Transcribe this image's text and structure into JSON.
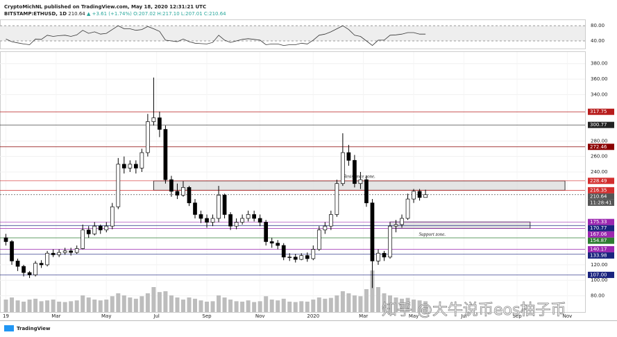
{
  "header": {
    "line1": "CryptoMichNL published on TradingView.com, May 18, 2020 12:31:21 UTC",
    "symbol": "BITSTAMP:ETHUSD, 1D",
    "price": "210.64",
    "change": "▲ +3.61 (+1.74%)",
    "ohlc": "O:207.02 H:217.10 L:207.01 C:210.64"
  },
  "footer": {
    "brand": "TradingView"
  },
  "watermark": "知乎 @大牛说币eos柚子币",
  "chart_data": {
    "type": "candlestick",
    "xlim": [
      -1,
      98
    ],
    "xticks": [
      {
        "value": 0,
        "label": "19"
      },
      {
        "value": 8.5,
        "label": "Mar"
      },
      {
        "value": 17,
        "label": "May"
      },
      {
        "value": 25.5,
        "label": "Jul"
      },
      {
        "value": 34,
        "label": "Sep"
      },
      {
        "value": 43,
        "label": "Nov"
      },
      {
        "value": 52,
        "label": "2020"
      },
      {
        "value": 60.5,
        "label": "Mar"
      },
      {
        "value": 69,
        "label": "May"
      },
      {
        "value": 77.5,
        "label": "Jul"
      },
      {
        "value": 86.5,
        "label": "Sep"
      },
      {
        "value": 95,
        "label": "Nov"
      }
    ],
    "ylim": [
      59,
      395
    ],
    "yticks": [
      {
        "value": 380,
        "label": "380.00"
      },
      {
        "value": 360,
        "label": "360.00"
      },
      {
        "value": 340,
        "label": "340.00"
      },
      {
        "value": 280,
        "label": "280.00"
      },
      {
        "value": 260,
        "label": "260.00"
      },
      {
        "value": 240,
        "label": "240.00"
      },
      {
        "value": 120,
        "label": "120.00"
      },
      {
        "value": 100,
        "label": "100.00"
      },
      {
        "value": 80,
        "label": "80.00"
      }
    ],
    "open": [
      155,
      150,
      125,
      118,
      110,
      107,
      122,
      120,
      135,
      133,
      136,
      138,
      136,
      141,
      165,
      160,
      170,
      165,
      170,
      195,
      250,
      245,
      250,
      245,
      265,
      305,
      310,
      295,
      230,
      215,
      210,
      220,
      200,
      185,
      180,
      175,
      180,
      210,
      185,
      170,
      175,
      180,
      185,
      180,
      175,
      150,
      148,
      145,
      130,
      130,
      127,
      132,
      128,
      140,
      165,
      170,
      185,
      225,
      265,
      255,
      225,
      230,
      200,
      125,
      135,
      130,
      170,
      172,
      180,
      205,
      215,
      207.02
    ],
    "high": [
      160,
      152,
      128,
      120,
      112,
      125,
      126,
      138,
      140,
      140,
      142,
      142,
      145,
      172,
      170,
      175,
      172,
      175,
      200,
      258,
      260,
      255,
      255,
      270,
      315,
      362,
      318,
      300,
      235,
      225,
      228,
      222,
      205,
      190,
      185,
      185,
      222,
      212,
      188,
      180,
      185,
      190,
      190,
      185,
      178,
      155,
      152,
      148,
      135,
      134,
      135,
      136,
      145,
      170,
      175,
      190,
      230,
      290,
      275,
      262,
      240,
      235,
      205,
      140,
      138,
      175,
      178,
      185,
      212,
      218,
      218,
      217.1
    ],
    "low": [
      145,
      120,
      112,
      105,
      103,
      105,
      116,
      118,
      130,
      130,
      133,
      132,
      134,
      140,
      155,
      158,
      160,
      162,
      166,
      192,
      238,
      240,
      238,
      240,
      260,
      300,
      285,
      225,
      208,
      205,
      208,
      196,
      180,
      174,
      168,
      170,
      175,
      180,
      165,
      166,
      172,
      176,
      176,
      170,
      145,
      142,
      140,
      126,
      125,
      123,
      126,
      124,
      126,
      138,
      160,
      165,
      182,
      222,
      248,
      220,
      218,
      195,
      90,
      120,
      125,
      128,
      162,
      168,
      178,
      200,
      203,
      207.01
    ],
    "close": [
      150,
      125,
      118,
      110,
      107,
      122,
      120,
      135,
      133,
      136,
      138,
      136,
      141,
      165,
      160,
      170,
      165,
      170,
      195,
      250,
      245,
      250,
      245,
      265,
      305,
      310,
      295,
      230,
      215,
      210,
      220,
      200,
      185,
      180,
      175,
      180,
      210,
      185,
      170,
      175,
      180,
      185,
      180,
      175,
      150,
      148,
      145,
      130,
      130,
      127,
      132,
      128,
      140,
      165,
      170,
      185,
      225,
      265,
      255,
      225,
      230,
      200,
      125,
      135,
      130,
      170,
      172,
      180,
      205,
      215,
      207,
      210.64
    ],
    "volume": {
      "ylim": [
        0,
        100
      ],
      "values": [
        30,
        35,
        28,
        25,
        30,
        32,
        26,
        28,
        30,
        25,
        24,
        26,
        28,
        40,
        35,
        30,
        28,
        30,
        38,
        45,
        40,
        35,
        32,
        38,
        45,
        60,
        48,
        50,
        40,
        35,
        30,
        35,
        32,
        28,
        25,
        26,
        40,
        35,
        30,
        26,
        25,
        28,
        24,
        26,
        38,
        30,
        28,
        32,
        25,
        24,
        26,
        25,
        30,
        35,
        32,
        34,
        40,
        50,
        45,
        40,
        38,
        55,
        100,
        60,
        45,
        40,
        35,
        32,
        34,
        30,
        28,
        26
      ]
    },
    "rsi": {
      "ylim": [
        20,
        93
      ],
      "yticks": [
        {
          "value": 80,
          "label": "80.00"
        },
        {
          "value": 40,
          "label": "40.00"
        }
      ],
      "values": [
        45,
        38,
        35,
        32,
        30,
        45,
        44,
        55,
        52,
        54,
        55,
        52,
        56,
        68,
        60,
        64,
        58,
        60,
        70,
        80,
        72,
        72,
        68,
        70,
        78,
        72,
        65,
        42,
        40,
        38,
        45,
        38,
        34,
        33,
        32,
        36,
        55,
        42,
        36,
        40,
        44,
        46,
        44,
        42,
        30,
        32,
        32,
        28,
        30,
        30,
        34,
        32,
        42,
        55,
        58,
        64,
        72,
        80,
        70,
        55,
        52,
        40,
        28,
        42,
        42,
        55,
        56,
        58,
        62,
        62,
        58,
        58
      ],
      "color": "#333333"
    },
    "price_lines": [
      {
        "value": 317.75,
        "color": "#b71c1c"
      },
      {
        "value": 300.77,
        "color": "#222222"
      },
      {
        "value": 272.46,
        "color": "#8b0000"
      },
      {
        "value": 228.49,
        "color": "#d32f2f"
      },
      {
        "value": 216.35,
        "color": "#d32f2f"
      },
      {
        "value": 210.64,
        "color": "#555555"
      },
      {
        "value": 175.33,
        "color": "#9c27b0"
      },
      {
        "value": 170.77,
        "color": "#1a237e"
      },
      {
        "value": 167.06,
        "color": "#9c27b0"
      },
      {
        "value": 154.87,
        "color": "#2e7d32"
      },
      {
        "value": 140.17,
        "color": "#9c27b0"
      },
      {
        "value": 133.98,
        "color": "#1a237e"
      },
      {
        "value": 107,
        "label": "107.00",
        "color": "#1a237e"
      }
    ],
    "countdown": "11:28:41",
    "zones": [
      {
        "label": "Resistance zone.",
        "range": [
          216.35,
          228.49
        ],
        "x": [
          25,
          94.6
        ]
      },
      {
        "label": "Support zone.",
        "range": [
          167.06,
          175.33
        ],
        "x": [
          65,
          88.7
        ]
      }
    ]
  }
}
